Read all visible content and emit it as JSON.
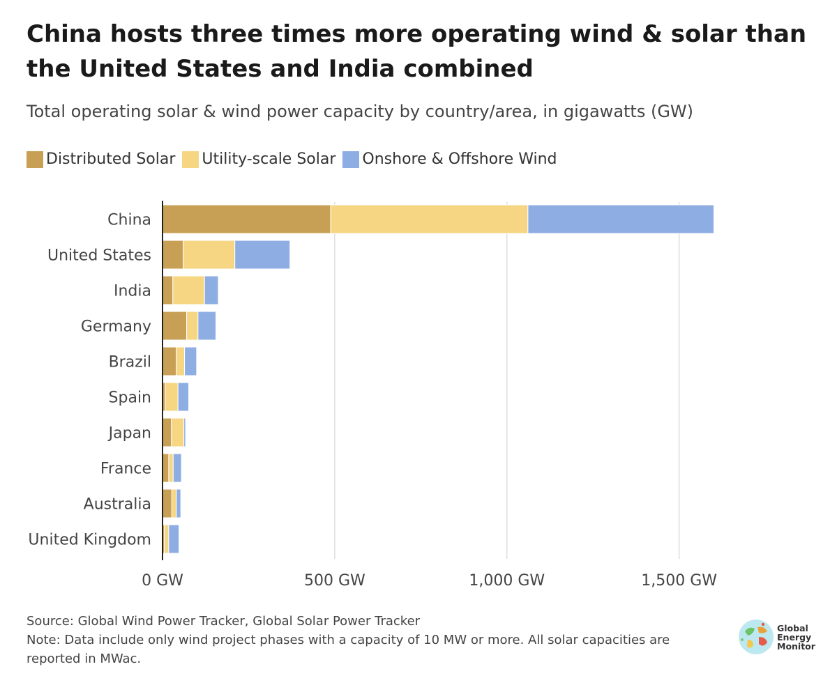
{
  "title": "China hosts three times more operating wind & solar than the United States and India combined",
  "subtitle": "Total operating solar & wind power capacity by country/area, in gigawatts (GW)",
  "colors": {
    "distributed_solar": "#c8a055",
    "utility_solar": "#f7d683",
    "wind": "#8eaee3",
    "grid": "#dddddd",
    "axis": "#222222"
  },
  "chart_data": {
    "type": "bar",
    "orientation": "horizontal",
    "stacked": true,
    "categories": [
      "China",
      "United States",
      "India",
      "Germany",
      "Brazil",
      "Spain",
      "Japan",
      "France",
      "Australia",
      "United Kingdom"
    ],
    "series": [
      {
        "name": "Distributed Solar",
        "color": "#c8a055",
        "values": [
          488,
          60,
          30,
          70,
          40,
          8,
          26,
          18,
          27,
          5
        ]
      },
      {
        "name": "Utility-scale Solar",
        "color": "#f7d683",
        "values": [
          573,
          150,
          92,
          33,
          24,
          37,
          36,
          13,
          13,
          13
        ]
      },
      {
        "name": "Onshore & Offshore Wind",
        "color": "#8eaee3",
        "values": [
          540,
          160,
          40,
          52,
          35,
          31,
          5,
          24,
          13,
          30
        ]
      }
    ],
    "xlim": [
      0,
      1600
    ],
    "xticks": [
      0,
      500,
      1000,
      1500
    ],
    "xtick_labels": [
      "0 GW",
      "500 GW",
      "1,000 GW",
      "1,500 GW"
    ],
    "xlabel": "",
    "ylabel": "",
    "grid": true,
    "legend": "top-left"
  },
  "footer": {
    "source": "Source: Global Wind Power Tracker, Global Solar Power Tracker",
    "note": "Note: Data include only wind project phases with a capacity of 10 MW or more. All solar capacities are reported in MWac."
  },
  "logo": {
    "line1": "Global",
    "line2": "Energy",
    "line3": "Monitor",
    "icon": "globe-icon"
  }
}
